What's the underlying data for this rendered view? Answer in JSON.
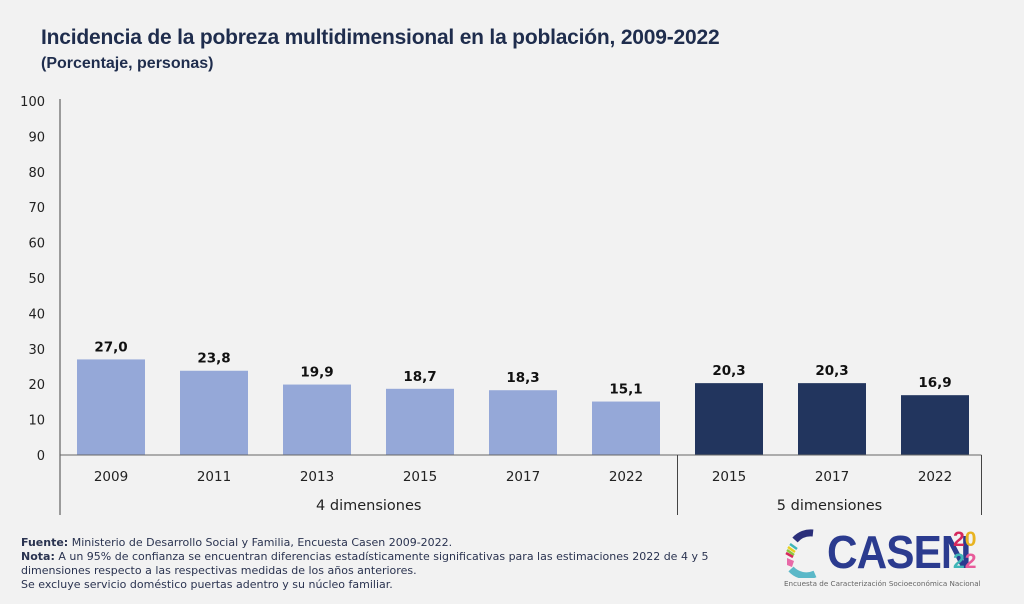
{
  "header": {
    "title": "Incidencia de la pobreza multidimensional en la población, 2009-2022",
    "subtitle": "(Porcentaje, personas)"
  },
  "chart_data": {
    "type": "bar",
    "title": "Incidencia de la pobreza multidimensional en la población, 2009-2022",
    "subtitle": "(Porcentaje, personas)",
    "xlabel": "",
    "ylabel": "",
    "ylim": [
      0,
      100
    ],
    "yticks": [
      0,
      10,
      20,
      30,
      40,
      50,
      60,
      70,
      80,
      90,
      100
    ],
    "grid": false,
    "legend": "none",
    "groups": [
      {
        "name": "4 dimensiones",
        "color": "#95a8d8",
        "categories": [
          "2009",
          "2011",
          "2013",
          "2015",
          "2017",
          "2022"
        ],
        "values": [
          27.0,
          23.8,
          19.9,
          18.7,
          18.3,
          15.1
        ],
        "labels": [
          "27,0",
          "23,8",
          "19,9",
          "18,7",
          "18,3",
          "15,1"
        ]
      },
      {
        "name": "5 dimensiones",
        "color": "#22355e",
        "categories": [
          "2015",
          "2017",
          "2022"
        ],
        "values": [
          20.3,
          20.3,
          16.9
        ],
        "labels": [
          "20,3",
          "20,3",
          "16,9"
        ]
      }
    ]
  },
  "footer": {
    "source_label": "Fuente:",
    "source_text": " Ministerio de Desarrollo Social y Familia, Encuesta Casen 2009-2022.",
    "note_label": "Nota:",
    "note_text": " A un 95% de confianza se encuentran diferencias estadísticamente significativas para las estimaciones 2022 de 4 y 5 dimensiones respecto a las respectivas medidas de los años anteriores.",
    "exclusion_text": "Se excluye servicio doméstico puertas adentro y su núcleo familiar."
  },
  "logo": {
    "word": "CASEN",
    "year_top": [
      "2",
      "0"
    ],
    "year_bottom": [
      "2",
      "2"
    ],
    "tagline": "Encuesta de Caracterización Socioeconómica Nacional"
  }
}
